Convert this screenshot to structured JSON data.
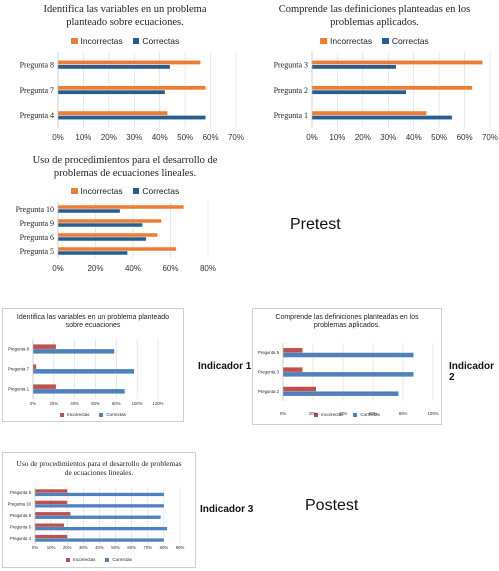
{
  "colors": {
    "pre_incorrect": "#ED7D31",
    "pre_correct": "#255E91",
    "post_incorrect": "#C0504D",
    "post_correct": "#4F81BD"
  },
  "labels": {
    "pretest": "Pretest",
    "postest": "Postest",
    "ind1": "Indicador 1",
    "ind2": "Indicador 2",
    "ind3": "Indicador 3"
  },
  "chart_data": [
    {
      "type": "bar",
      "group": "pretest",
      "title": "Identifica las variables en un problema planteado sobre ecuaciones.",
      "categories": [
        "Pregunta 8",
        "Pregunta 7",
        "Pregunta 4"
      ],
      "series": [
        {
          "name": "Incorrectas",
          "values": [
            56,
            58,
            43
          ]
        },
        {
          "name": "Correctas",
          "values": [
            44,
            42,
            58
          ]
        }
      ],
      "xlim": [
        0,
        70
      ],
      "ticks": [
        0,
        10,
        20,
        30,
        40,
        50,
        60,
        70
      ],
      "tick_suffix": "%",
      "grid": true,
      "legend": "top"
    },
    {
      "type": "bar",
      "group": "pretest",
      "title": "Comprende las definiciones planteadas en los problemas aplicados.",
      "categories": [
        "Pregunta 3",
        "Pregunta 2",
        "Pregunta 1"
      ],
      "series": [
        {
          "name": "Incorrectas",
          "values": [
            67,
            63,
            45
          ]
        },
        {
          "name": "Correctas",
          "values": [
            33,
            37,
            55
          ]
        }
      ],
      "xlim": [
        0,
        70
      ],
      "ticks": [
        0,
        10,
        20,
        30,
        40,
        50,
        60,
        70
      ],
      "tick_suffix": "%",
      "grid": true,
      "legend": "top"
    },
    {
      "type": "bar",
      "group": "pretest",
      "title": "Uso de procedimientos para el desarrollo de problemas de ecuaciones lineales.",
      "categories": [
        "Pregunta 10",
        "Pregunta 9",
        "Pregunta 6",
        "Pregunta 5"
      ],
      "series": [
        {
          "name": "Incorrectas",
          "values": [
            67,
            55,
            53,
            63
          ]
        },
        {
          "name": "Correctas",
          "values": [
            33,
            45,
            47,
            37
          ]
        }
      ],
      "xlim": [
        0,
        80
      ],
      "ticks": [
        0,
        20,
        40,
        60,
        80
      ],
      "tick_suffix": "%",
      "grid": true,
      "legend": "top"
    },
    {
      "type": "bar",
      "group": "postest",
      "title": "Identifica las variables en un problema planteado sobre ecuaciones",
      "categories": [
        "Pregunta 8",
        "Pregunta 7",
        "Pregunta 1"
      ],
      "series": [
        {
          "name": "Incorrectas",
          "values": [
            22,
            3,
            22
          ]
        },
        {
          "name": "Correctas",
          "values": [
            78,
            97,
            88
          ]
        }
      ],
      "xlim": [
        0,
        120
      ],
      "ticks": [
        0,
        20,
        40,
        60,
        80,
        100,
        120
      ],
      "tick_suffix": "%",
      "grid": true,
      "legend": "bottom"
    },
    {
      "type": "bar",
      "group": "postest",
      "title": "Comprende las definiciones planteadas en los problemas aplicados.",
      "categories": [
        "Pregunta 5",
        "Pregunta 3",
        "Pregunta 2"
      ],
      "series": [
        {
          "name": "Incorrectas",
          "values": [
            13,
            13,
            22
          ]
        },
        {
          "name": "Correctas",
          "values": [
            87,
            87,
            77
          ]
        }
      ],
      "xlim": [
        0,
        100
      ],
      "ticks": [
        0,
        20,
        40,
        60,
        80,
        100
      ],
      "tick_suffix": "%",
      "grid": true,
      "legend": "bottom"
    },
    {
      "type": "bar",
      "group": "postest",
      "title": "Uso de procedimientos para el desarrollo de problemas de ecuaciones lineales.",
      "categories": [
        "Pregunta 9",
        "Pregunta 10",
        "Pregunta 8",
        "Pregunta 6",
        "Pregunta 4"
      ],
      "series": [
        {
          "name": "Incorrectas",
          "values": [
            20,
            20,
            22,
            18,
            20
          ]
        },
        {
          "name": "Correctas",
          "values": [
            80,
            80,
            78,
            82,
            80
          ]
        }
      ],
      "xlim": [
        0,
        90
      ],
      "ticks": [
        0,
        10,
        20,
        30,
        40,
        50,
        60,
        70,
        80,
        90
      ],
      "tick_suffix": "%",
      "grid": true,
      "legend": "bottom"
    }
  ]
}
